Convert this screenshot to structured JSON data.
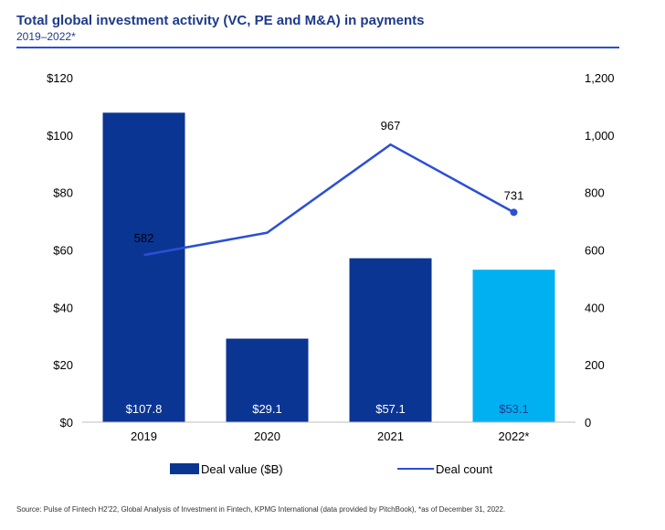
{
  "header": {
    "title": "Total global investment activity (VC, PE and M&A) in payments",
    "subtitle": "2019–2022*"
  },
  "chart_data": {
    "type": "bar",
    "categories": [
      "2019",
      "2020",
      "2021",
      "2022*"
    ],
    "series": [
      {
        "name": "Deal value ($B)",
        "type": "bar",
        "axis": "left",
        "values": [
          107.8,
          29.1,
          57.1,
          53.1
        ],
        "labels": [
          "$107.8",
          "$29.1",
          "$57.1",
          "$53.1"
        ],
        "colors": [
          "#0a3593",
          "#0a3593",
          "#0a3593",
          "#00b0f0"
        ]
      },
      {
        "name": "Deal count",
        "type": "line",
        "axis": "right",
        "values": [
          582,
          660,
          967,
          731
        ],
        "labels": [
          "582",
          "",
          "967",
          "731"
        ],
        "color": "#2b4fd6"
      }
    ],
    "left_axis": {
      "ylim": [
        0,
        120
      ],
      "ticks": [
        0,
        20,
        40,
        60,
        80,
        100,
        120
      ],
      "tick_labels": [
        "$0",
        "$20",
        "$40",
        "$60",
        "$80",
        "$100",
        "$120"
      ]
    },
    "right_axis": {
      "ylim": [
        0,
        1200
      ],
      "ticks": [
        0,
        200,
        400,
        600,
        800,
        1000,
        1200
      ],
      "tick_labels": [
        "0",
        "200",
        "400",
        "600",
        "800",
        "1,000",
        "1,200"
      ]
    },
    "legend": {
      "position": "bottom"
    },
    "grid": false
  },
  "footer": {
    "source": "Source: Pulse of Fintech H2'22, Global Analysis of Investment in Fintech, KPMG International (data provided by PitchBook), *as of December 31, 2022."
  }
}
